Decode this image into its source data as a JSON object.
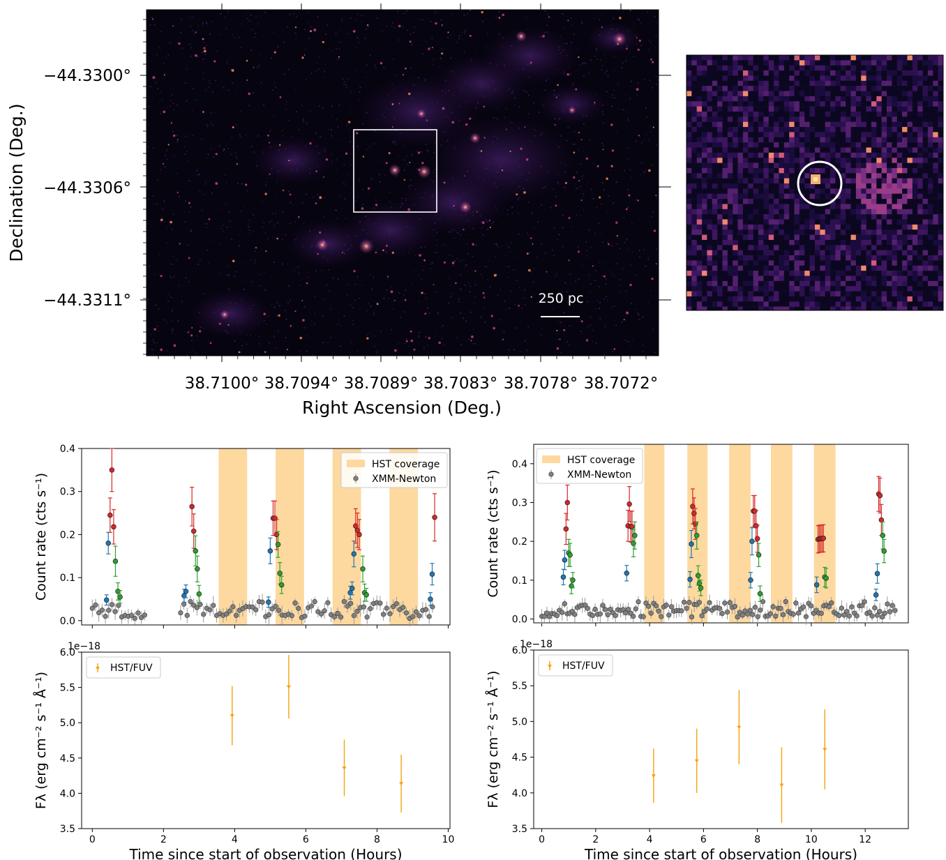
{
  "image": {
    "ylabel": "Declination (Deg.)",
    "xlabel": "Right Ascension (Deg.)",
    "yticks": [
      "−44.3300°",
      "−44.3306°",
      "−44.3311°"
    ],
    "xticks": [
      "38.7100°",
      "38.7094°",
      "38.7089°",
      "38.7083°",
      "38.7078°",
      "38.7072°"
    ],
    "scalebar_label": "250 pc",
    "colormap": "magma"
  },
  "chart_data": [
    {
      "type": "scatter",
      "panel": "top-left",
      "xlabel": "",
      "ylabel": "Count rate (cts s⁻¹)",
      "xlim": [
        -0.3,
        10.05
      ],
      "ylim": [
        -0.01,
        0.4
      ],
      "yticks": [
        "0.0",
        "0.1",
        "0.2",
        "0.3",
        "0.4"
      ],
      "legend": [
        "HST coverage",
        "XMM-Newton"
      ],
      "legend_loc": "upper right",
      "hst_intervals": [
        [
          3.55,
          4.35
        ],
        [
          5.15,
          5.95
        ],
        [
          6.75,
          7.55
        ],
        [
          8.35,
          9.15
        ]
      ],
      "colored_points": [
        {
          "x": 0.4,
          "y": 0.048,
          "e": 0.012,
          "c": "blue"
        },
        {
          "x": 0.45,
          "y": 0.18,
          "e": 0.025,
          "c": "blue"
        },
        {
          "x": 0.5,
          "y": 0.245,
          "e": 0.04,
          "c": "red"
        },
        {
          "x": 0.55,
          "y": 0.35,
          "e": 0.05,
          "c": "red"
        },
        {
          "x": 0.6,
          "y": 0.218,
          "e": 0.04,
          "c": "red"
        },
        {
          "x": 0.65,
          "y": 0.138,
          "e": 0.035,
          "c": "green"
        },
        {
          "x": 0.72,
          "y": 0.068,
          "e": 0.02,
          "c": "green"
        },
        {
          "x": 0.78,
          "y": 0.055,
          "e": 0.015,
          "c": "green"
        },
        {
          "x": 2.58,
          "y": 0.058,
          "e": 0.015,
          "c": "blue"
        },
        {
          "x": 2.63,
          "y": 0.068,
          "e": 0.015,
          "c": "blue"
        },
        {
          "x": 2.8,
          "y": 0.265,
          "e": 0.045,
          "c": "red"
        },
        {
          "x": 2.85,
          "y": 0.208,
          "e": 0.04,
          "c": "red"
        },
        {
          "x": 2.9,
          "y": 0.162,
          "e": 0.035,
          "c": "green"
        },
        {
          "x": 2.95,
          "y": 0.12,
          "e": 0.03,
          "c": "green"
        },
        {
          "x": 3.0,
          "y": 0.062,
          "e": 0.02,
          "c": "green"
        },
        {
          "x": 4.95,
          "y": 0.043,
          "e": 0.012,
          "c": "blue"
        },
        {
          "x": 5.0,
          "y": 0.162,
          "e": 0.03,
          "c": "blue"
        },
        {
          "x": 5.08,
          "y": 0.238,
          "e": 0.04,
          "c": "red"
        },
        {
          "x": 5.13,
          "y": 0.238,
          "e": 0.04,
          "c": "red"
        },
        {
          "x": 5.18,
          "y": 0.2,
          "e": 0.035,
          "c": "red"
        },
        {
          "x": 5.22,
          "y": 0.177,
          "e": 0.03,
          "c": "green"
        },
        {
          "x": 5.27,
          "y": 0.11,
          "e": 0.025,
          "c": "green"
        },
        {
          "x": 5.32,
          "y": 0.083,
          "e": 0.02,
          "c": "green"
        },
        {
          "x": 7.25,
          "y": 0.065,
          "e": 0.015,
          "c": "blue"
        },
        {
          "x": 7.3,
          "y": 0.075,
          "e": 0.015,
          "c": "blue"
        },
        {
          "x": 7.35,
          "y": 0.155,
          "e": 0.03,
          "c": "blue"
        },
        {
          "x": 7.4,
          "y": 0.22,
          "e": 0.04,
          "c": "red"
        },
        {
          "x": 7.45,
          "y": 0.21,
          "e": 0.04,
          "c": "red"
        },
        {
          "x": 7.5,
          "y": 0.2,
          "e": 0.035,
          "c": "red"
        },
        {
          "x": 7.6,
          "y": 0.12,
          "e": 0.03,
          "c": "green"
        },
        {
          "x": 7.65,
          "y": 0.065,
          "e": 0.02,
          "c": "green"
        },
        {
          "x": 7.7,
          "y": 0.06,
          "e": 0.015,
          "c": "green"
        },
        {
          "x": 9.5,
          "y": 0.05,
          "e": 0.015,
          "c": "blue"
        },
        {
          "x": 9.55,
          "y": 0.108,
          "e": 0.025,
          "c": "blue"
        },
        {
          "x": 9.62,
          "y": 0.24,
          "e": 0.055,
          "c": "red"
        }
      ]
    },
    {
      "type": "scatter",
      "panel": "bottom-left",
      "xlabel": "Time since start of observation (Hours)",
      "ylabel": "Fλ (erg cm⁻² s⁻¹ Å⁻¹)",
      "offset_label": "1e−18",
      "xlim": [
        -0.3,
        10.05
      ],
      "ylim": [
        3.5,
        6.0
      ],
      "xticks": [
        "0",
        "2",
        "4",
        "6",
        "8",
        "10"
      ],
      "yticks": [
        "3.5",
        "4.0",
        "4.5",
        "5.0",
        "5.5",
        "6.0"
      ],
      "legend": [
        "HST/FUV"
      ],
      "legend_loc": "upper left",
      "points": [
        {
          "x": 3.93,
          "y": 5.1,
          "e": 0.42
        },
        {
          "x": 5.52,
          "y": 5.51,
          "e": 0.45
        },
        {
          "x": 7.08,
          "y": 4.36,
          "e": 0.4
        },
        {
          "x": 8.68,
          "y": 4.14,
          "e": 0.41
        }
      ]
    },
    {
      "type": "scatter",
      "panel": "top-right",
      "xlabel": "",
      "ylabel": "Count rate (cts s⁻¹)",
      "xlim": [
        -0.3,
        13.6
      ],
      "ylim": [
        -0.01,
        0.45
      ],
      "yticks": [
        "0.0",
        "0.1",
        "0.2",
        "0.3",
        "0.4"
      ],
      "legend": [
        "HST coverage",
        "XMM-Newton"
      ],
      "legend_loc": "upper left",
      "hst_intervals": [
        [
          3.8,
          4.55
        ],
        [
          5.4,
          6.15
        ],
        [
          6.95,
          7.75
        ],
        [
          8.5,
          9.3
        ],
        [
          10.1,
          10.9
        ]
      ],
      "colored_points": [
        {
          "x": 0.8,
          "y": 0.108,
          "e": 0.02,
          "c": "blue"
        },
        {
          "x": 0.85,
          "y": 0.152,
          "e": 0.025,
          "c": "blue"
        },
        {
          "x": 0.9,
          "y": 0.232,
          "e": 0.04,
          "c": "red"
        },
        {
          "x": 0.95,
          "y": 0.3,
          "e": 0.045,
          "c": "red"
        },
        {
          "x": 1.0,
          "y": 0.17,
          "e": 0.035,
          "c": "green"
        },
        {
          "x": 1.05,
          "y": 0.165,
          "e": 0.03,
          "c": "green"
        },
        {
          "x": 1.1,
          "y": 0.085,
          "e": 0.02,
          "c": "green"
        },
        {
          "x": 1.15,
          "y": 0.1,
          "e": 0.02,
          "c": "green"
        },
        {
          "x": 3.15,
          "y": 0.118,
          "e": 0.02,
          "c": "blue"
        },
        {
          "x": 3.2,
          "y": 0.24,
          "e": 0.04,
          "c": "red"
        },
        {
          "x": 3.25,
          "y": 0.296,
          "e": 0.045,
          "c": "red"
        },
        {
          "x": 3.3,
          "y": 0.238,
          "e": 0.04,
          "c": "red"
        },
        {
          "x": 3.35,
          "y": 0.238,
          "e": 0.04,
          "c": "red"
        },
        {
          "x": 3.4,
          "y": 0.195,
          "e": 0.035,
          "c": "green"
        },
        {
          "x": 3.45,
          "y": 0.215,
          "e": 0.035,
          "c": "green"
        },
        {
          "x": 5.5,
          "y": 0.102,
          "e": 0.02,
          "c": "blue"
        },
        {
          "x": 5.55,
          "y": 0.193,
          "e": 0.035,
          "c": "blue"
        },
        {
          "x": 5.6,
          "y": 0.29,
          "e": 0.045,
          "c": "red"
        },
        {
          "x": 5.65,
          "y": 0.272,
          "e": 0.04,
          "c": "red"
        },
        {
          "x": 5.7,
          "y": 0.245,
          "e": 0.04,
          "c": "red"
        },
        {
          "x": 5.75,
          "y": 0.215,
          "e": 0.035,
          "c": "green"
        },
        {
          "x": 5.8,
          "y": 0.112,
          "e": 0.025,
          "c": "green"
        },
        {
          "x": 5.85,
          "y": 0.092,
          "e": 0.02,
          "c": "green"
        },
        {
          "x": 5.9,
          "y": 0.08,
          "e": 0.02,
          "c": "green"
        },
        {
          "x": 7.75,
          "y": 0.1,
          "e": 0.02,
          "c": "blue"
        },
        {
          "x": 7.8,
          "y": 0.2,
          "e": 0.035,
          "c": "blue"
        },
        {
          "x": 7.85,
          "y": 0.278,
          "e": 0.04,
          "c": "red"
        },
        {
          "x": 7.9,
          "y": 0.278,
          "e": 0.04,
          "c": "red"
        },
        {
          "x": 7.95,
          "y": 0.24,
          "e": 0.04,
          "c": "red"
        },
        {
          "x": 8.0,
          "y": 0.207,
          "e": 0.035,
          "c": "red"
        },
        {
          "x": 8.05,
          "y": 0.165,
          "e": 0.03,
          "c": "green"
        },
        {
          "x": 8.1,
          "y": 0.065,
          "e": 0.02,
          "c": "green"
        },
        {
          "x": 10.2,
          "y": 0.088,
          "e": 0.02,
          "c": "blue"
        },
        {
          "x": 10.25,
          "y": 0.205,
          "e": 0.035,
          "c": "red"
        },
        {
          "x": 10.3,
          "y": 0.207,
          "e": 0.035,
          "c": "red"
        },
        {
          "x": 10.35,
          "y": 0.207,
          "e": 0.035,
          "c": "red"
        },
        {
          "x": 10.4,
          "y": 0.207,
          "e": 0.035,
          "c": "red"
        },
        {
          "x": 10.45,
          "y": 0.208,
          "e": 0.035,
          "c": "red"
        },
        {
          "x": 10.5,
          "y": 0.108,
          "e": 0.025,
          "c": "green"
        },
        {
          "x": 10.55,
          "y": 0.105,
          "e": 0.025,
          "c": "green"
        },
        {
          "x": 12.4,
          "y": 0.062,
          "e": 0.015,
          "c": "blue"
        },
        {
          "x": 12.45,
          "y": 0.117,
          "e": 0.025,
          "c": "blue"
        },
        {
          "x": 12.5,
          "y": 0.322,
          "e": 0.045,
          "c": "red"
        },
        {
          "x": 12.55,
          "y": 0.318,
          "e": 0.045,
          "c": "red"
        },
        {
          "x": 12.6,
          "y": 0.255,
          "e": 0.04,
          "c": "red"
        },
        {
          "x": 12.65,
          "y": 0.215,
          "e": 0.035,
          "c": "green"
        },
        {
          "x": 12.7,
          "y": 0.175,
          "e": 0.03,
          "c": "green"
        }
      ]
    },
    {
      "type": "scatter",
      "panel": "bottom-right",
      "xlabel": "Time since start of observation (Hours)",
      "ylabel": "Fλ (erg cm⁻² s⁻¹ Å⁻¹)",
      "offset_label": "1e−18",
      "xlim": [
        -0.3,
        13.6
      ],
      "ylim": [
        3.5,
        6.0
      ],
      "xticks": [
        "0",
        "2",
        "4",
        "6",
        "8",
        "10",
        "12"
      ],
      "yticks": [
        "3.5",
        "4.0",
        "4.5",
        "5.0",
        "5.5",
        "6.0"
      ],
      "legend": [
        "HST/FUV"
      ],
      "legend_loc": "upper left",
      "points": [
        {
          "x": 4.15,
          "y": 4.24,
          "e": 0.38
        },
        {
          "x": 5.75,
          "y": 4.45,
          "e": 0.45
        },
        {
          "x": 7.32,
          "y": 4.92,
          "e": 0.52
        },
        {
          "x": 8.9,
          "y": 4.11,
          "e": 0.53
        },
        {
          "x": 10.5,
          "y": 4.61,
          "e": 0.56
        }
      ]
    }
  ],
  "colors": {
    "hst_band": "#fdd9a0",
    "grey_marker": "#808080",
    "blue": "#1f77b4",
    "red": "#d62728",
    "green": "#2ca02c",
    "fuv": "#f5a20a"
  }
}
